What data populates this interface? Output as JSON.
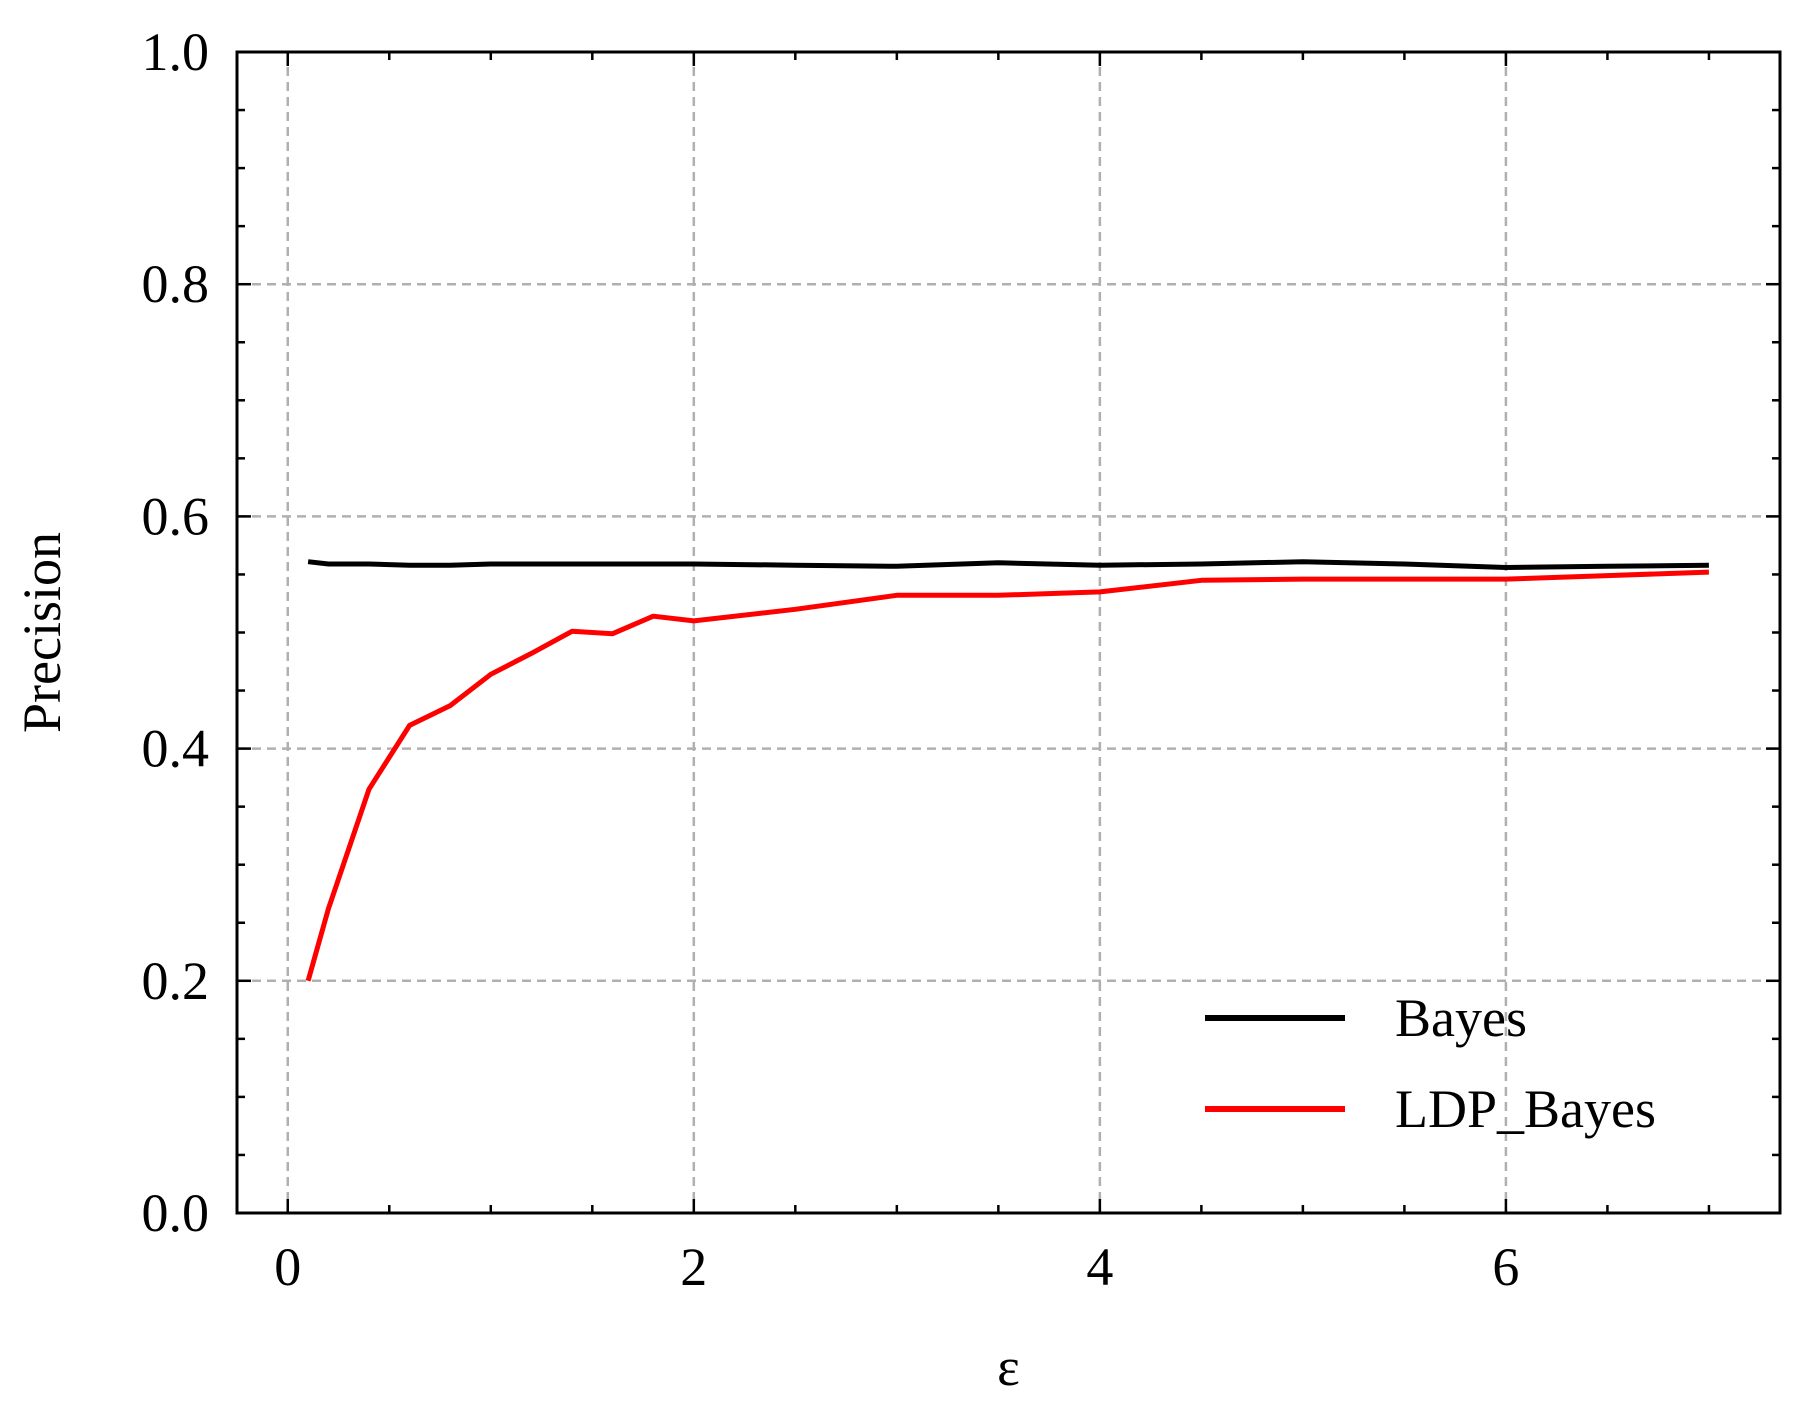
{
  "chart_data": {
    "type": "line",
    "xlabel": "ε",
    "ylabel": "Precision",
    "xlim": [
      -0.25,
      7.35
    ],
    "ylim": [
      0.0,
      1.0
    ],
    "xticks": [
      0,
      2,
      4,
      6
    ],
    "xtick_labels": [
      "0",
      "2",
      "4",
      "6"
    ],
    "xminor": [
      0.5,
      1.0,
      1.5,
      2.5,
      3.0,
      3.5,
      4.5,
      5.0,
      5.5,
      6.5,
      7.0
    ],
    "yticks": [
      0.0,
      0.2,
      0.4,
      0.6,
      0.8,
      1.0
    ],
    "ytick_labels": [
      "0.0",
      "0.2",
      "0.4",
      "0.6",
      "0.8",
      "1.0"
    ],
    "yminor": [
      0.05,
      0.1,
      0.15,
      0.25,
      0.3,
      0.35,
      0.45,
      0.5,
      0.55,
      0.65,
      0.7,
      0.75,
      0.85,
      0.9,
      0.95
    ],
    "grid": true,
    "legend_position": "lower-right",
    "series": [
      {
        "name": "Bayes",
        "color": "#000000",
        "x": [
          0.1,
          0.2,
          0.4,
          0.6,
          0.8,
          1.0,
          1.2,
          1.4,
          1.6,
          1.8,
          2.0,
          2.5,
          3.0,
          3.5,
          4.0,
          4.5,
          5.0,
          5.5,
          6.0,
          6.5,
          7.0
        ],
        "y": [
          0.561,
          0.559,
          0.559,
          0.558,
          0.558,
          0.559,
          0.559,
          0.559,
          0.559,
          0.559,
          0.559,
          0.558,
          0.557,
          0.56,
          0.558,
          0.559,
          0.561,
          0.559,
          0.556,
          0.557,
          0.558
        ]
      },
      {
        "name": "LDP_Bayes",
        "color": "#ff0000",
        "x": [
          0.1,
          0.2,
          0.4,
          0.6,
          0.8,
          1.0,
          1.2,
          1.4,
          1.6,
          1.8,
          2.0,
          2.5,
          3.0,
          3.5,
          4.0,
          4.5,
          5.0,
          5.5,
          6.0,
          6.5,
          7.0
        ],
        "y": [
          0.2,
          0.262,
          0.365,
          0.42,
          0.437,
          0.464,
          0.482,
          0.501,
          0.499,
          0.514,
          0.51,
          0.52,
          0.532,
          0.532,
          0.535,
          0.545,
          0.546,
          0.546,
          0.546,
          0.549,
          0.552
        ]
      }
    ]
  }
}
